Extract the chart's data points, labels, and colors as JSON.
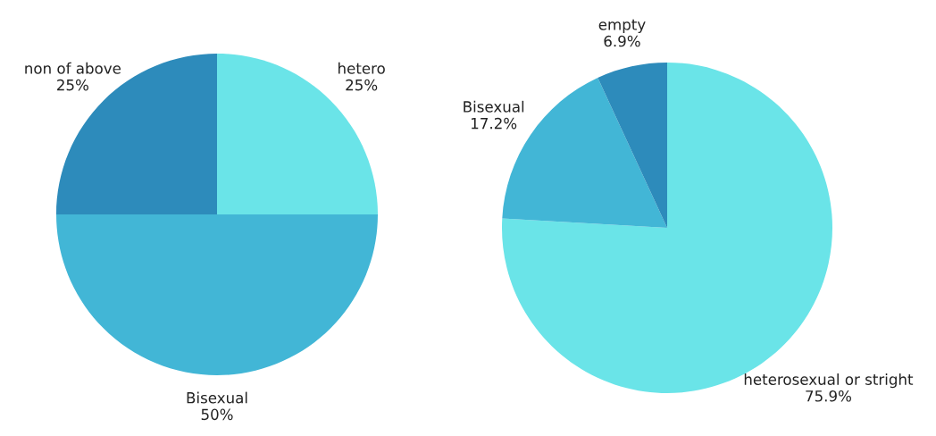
{
  "chart_data": [
    {
      "type": "pie",
      "categories": [
        "hetero",
        "Bisexual",
        "non of above"
      ],
      "values": [
        25,
        50,
        25
      ],
      "value_labels": [
        "25%",
        "50%",
        "25%"
      ],
      "colors": [
        "#6ae4e8",
        "#42b6d6",
        "#2d8bbb"
      ]
    },
    {
      "type": "pie",
      "categories": [
        "heterosexual or stright",
        "Bisexual",
        "empty"
      ],
      "values": [
        75.9,
        17.2,
        6.9
      ],
      "value_labels": [
        "75.9%",
        "17.2%",
        "6.9%"
      ],
      "colors": [
        "#6ae4e8",
        "#42b6d6",
        "#2d8bbb"
      ]
    }
  ]
}
